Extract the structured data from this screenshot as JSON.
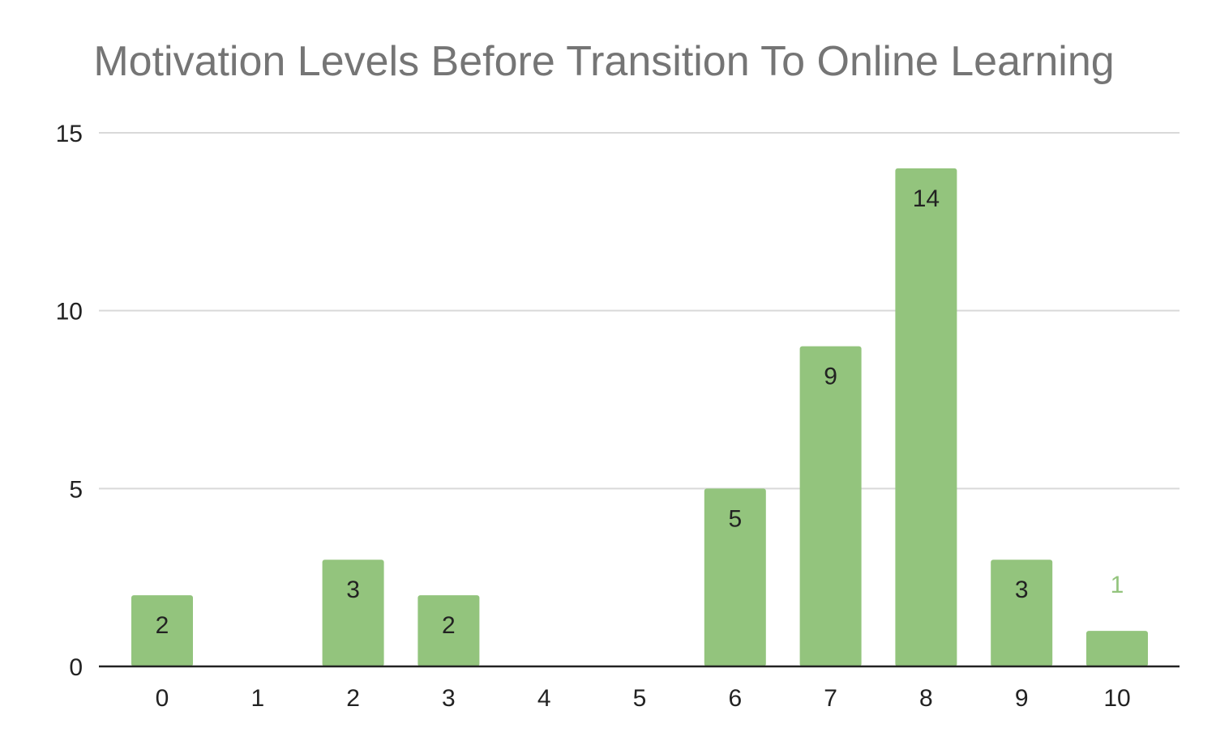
{
  "chart_data": {
    "type": "bar",
    "title": "Motivation Levels Before Transition To Online Learning",
    "xlabel": "",
    "ylabel": "",
    "categories": [
      "0",
      "1",
      "2",
      "3",
      "4",
      "5",
      "6",
      "7",
      "8",
      "9",
      "10"
    ],
    "values": [
      2,
      0,
      3,
      2,
      0,
      0,
      5,
      9,
      14,
      3,
      1
    ],
    "data_labels": [
      "2",
      "",
      "3",
      "2",
      "",
      "",
      "5",
      "9",
      "14",
      "3",
      "1"
    ],
    "ylim": [
      0,
      15
    ],
    "yticks": [
      "0",
      "5",
      "10",
      "15"
    ],
    "grid": true,
    "legend": "none",
    "bar_color": "#93c47d",
    "inside_label_color": "#222222",
    "outside_label_color": "#93c47d",
    "title_color": "#757575",
    "gridline_color": "#d9d9d9",
    "axis_color": "#222222"
  }
}
